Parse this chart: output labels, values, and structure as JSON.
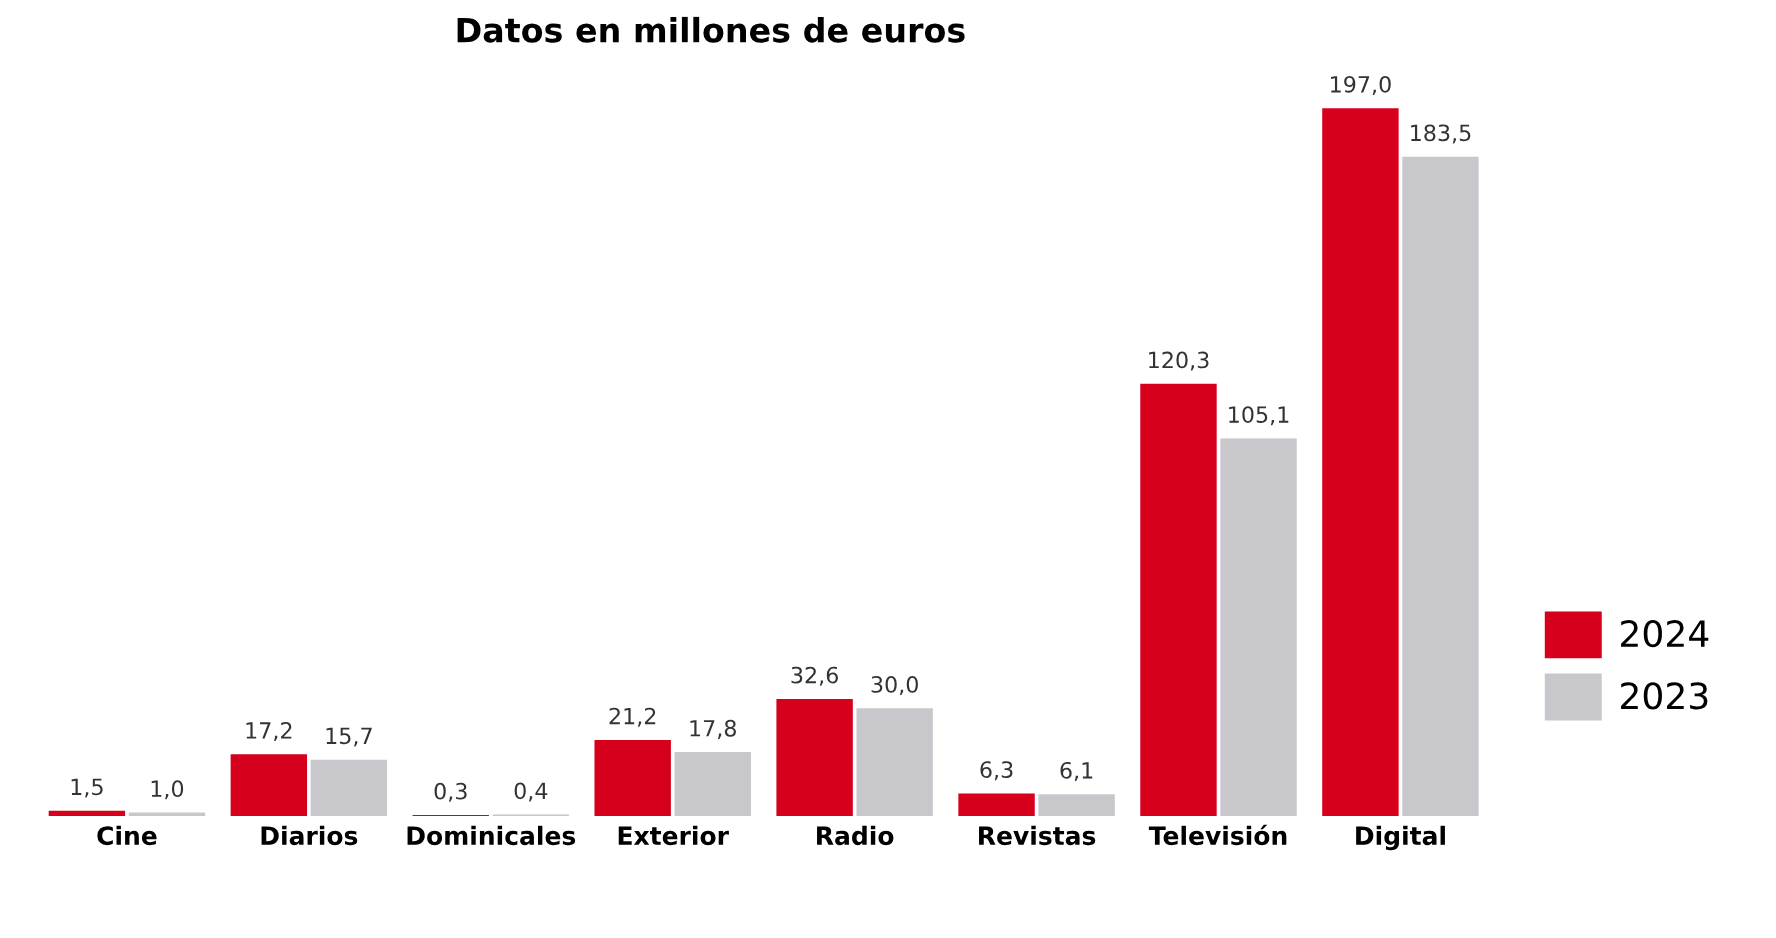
{
  "chart_data": {
    "type": "bar",
    "title": "Datos en millones de euros",
    "categories": [
      "Cine",
      "Diarios",
      "Dominicales",
      "Exterior",
      "Radio",
      "Revistas",
      "Televisión",
      "Digital"
    ],
    "series": [
      {
        "name": "2024",
        "color": "#d6001c",
        "values": [
          1.5,
          17.2,
          0.3,
          21.2,
          32.6,
          6.3,
          120.3,
          197.0
        ],
        "value_labels": [
          "1,5",
          "17,2",
          "0,3",
          "21,2",
          "32,6",
          "6,3",
          "120,3",
          "197,0"
        ]
      },
      {
        "name": "2023",
        "color": "#c8c8cc",
        "values": [
          1.0,
          15.7,
          0.4,
          17.8,
          30.0,
          6.1,
          105.1,
          183.5
        ],
        "value_labels": [
          "1,0",
          "15,7",
          "0,4",
          "17,8",
          "30,0",
          "6,1",
          "105,1",
          "183,5"
        ]
      }
    ],
    "legend": "right",
    "grid": false
  }
}
